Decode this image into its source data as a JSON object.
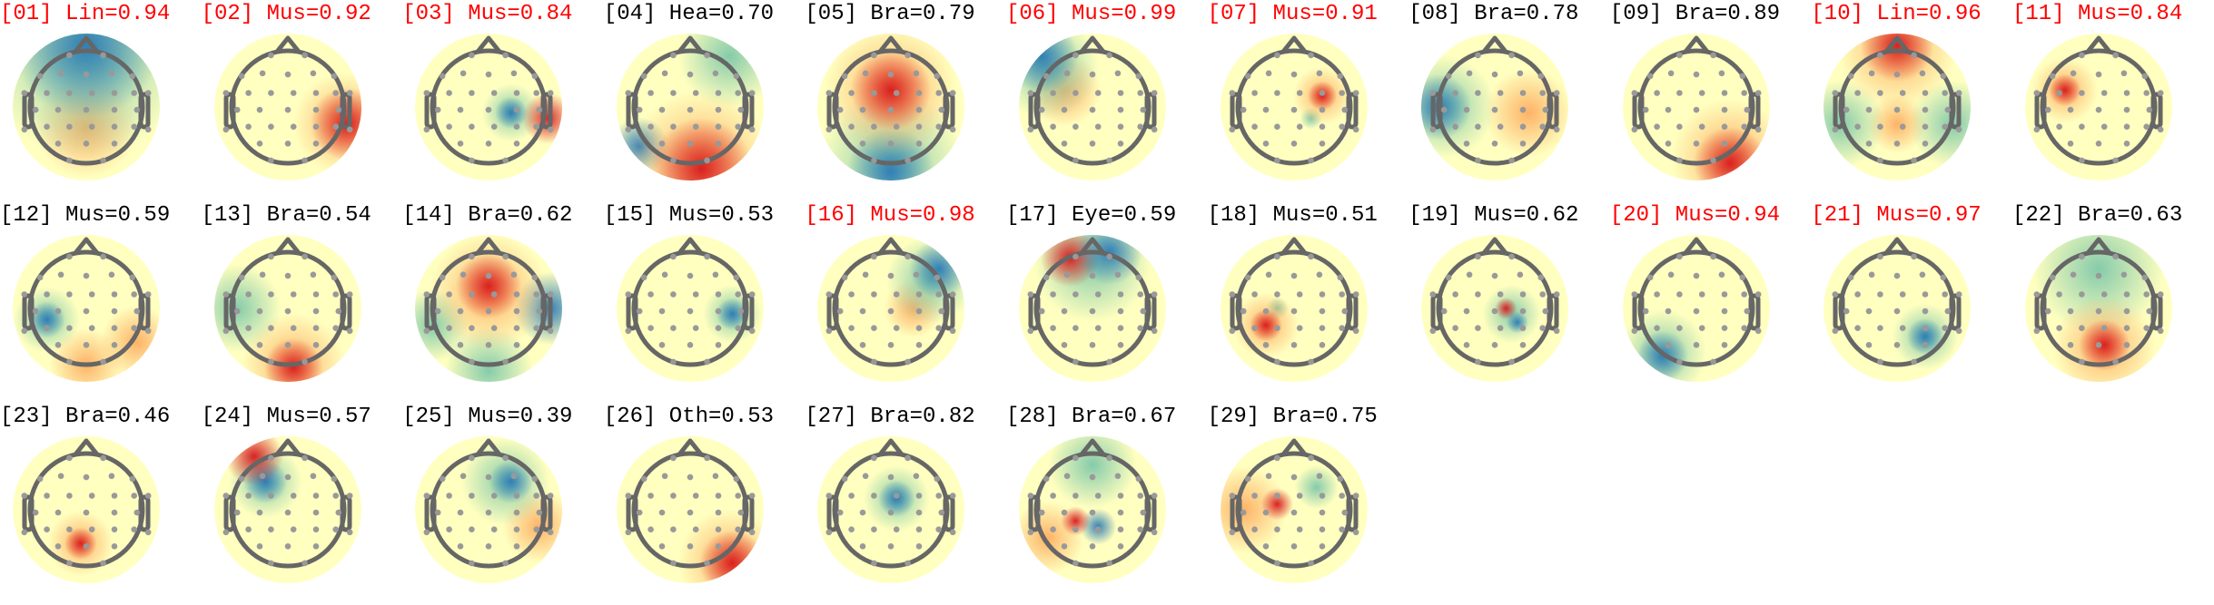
{
  "chart_data": {
    "type": "heatmap",
    "colors": {
      "flagged_label": "#ff0000",
      "normal_label": "#000000",
      "positive": "#d7191c",
      "neutral": "#ffffbf",
      "negative": "#2c7bb6",
      "head_outline": "#666666",
      "electrode": "#999999"
    },
    "components": [
      {
        "label": "[01] Lin=0.94",
        "flagged": true
      },
      {
        "label": "[02] Mus=0.92",
        "flagged": true
      },
      {
        "label": "[03] Mus=0.84",
        "flagged": true
      },
      {
        "label": "[04] Hea=0.70",
        "flagged": false
      },
      {
        "label": "[05] Bra=0.79",
        "flagged": false
      },
      {
        "label": "[06] Mus=0.99",
        "flagged": true
      },
      {
        "label": "[07] Mus=0.91",
        "flagged": true
      },
      {
        "label": "[08] Bra=0.78",
        "flagged": false
      },
      {
        "label": "[09] Bra=0.89",
        "flagged": false
      },
      {
        "label": "[10] Lin=0.96",
        "flagged": true
      },
      {
        "label": "[11] Mus=0.84",
        "flagged": true
      },
      {
        "label": "[12] Mus=0.59",
        "flagged": false
      },
      {
        "label": "[13] Bra=0.54",
        "flagged": false
      },
      {
        "label": "[14] Bra=0.62",
        "flagged": false
      },
      {
        "label": "[15] Mus=0.53",
        "flagged": false
      },
      {
        "label": "[16] Mus=0.98",
        "flagged": true
      },
      {
        "label": "[17] Eye=0.59",
        "flagged": false
      },
      {
        "label": "[18] Mus=0.51",
        "flagged": false
      },
      {
        "label": "[19] Mus=0.62",
        "flagged": false
      },
      {
        "label": "[20] Mus=0.94",
        "flagged": true
      },
      {
        "label": "[21] Mus=0.97",
        "flagged": true
      },
      {
        "label": "[22] Bra=0.63",
        "flagged": false
      },
      {
        "label": "[23] Bra=0.46",
        "flagged": false
      },
      {
        "label": "[24] Mus=0.57",
        "flagged": false
      },
      {
        "label": "[25] Mus=0.39",
        "flagged": false
      },
      {
        "label": "[26] Oth=0.53",
        "flagged": false
      },
      {
        "label": "[27] Bra=0.82",
        "flagged": false
      },
      {
        "label": "[28] Bra=0.67",
        "flagged": false
      },
      {
        "label": "[29] Bra=0.75",
        "flagged": false
      }
    ]
  }
}
